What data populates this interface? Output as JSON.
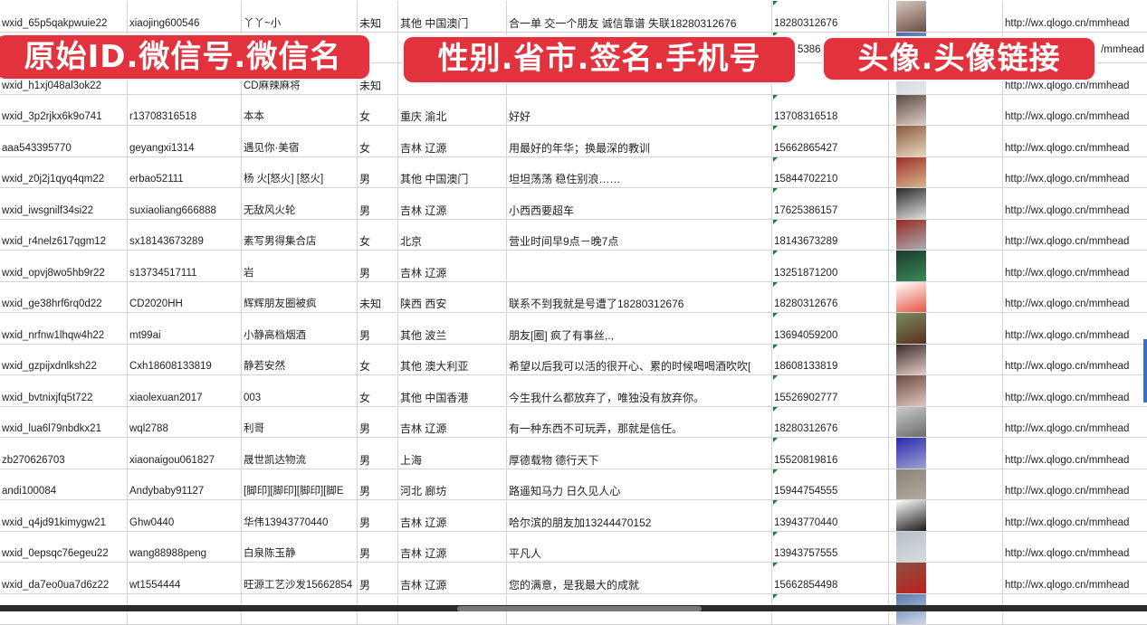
{
  "banners": [
    "原始ID.微信号.微信名",
    "性别.省市.签名.手机号",
    "头像.头像链接"
  ],
  "colors": {
    "banner": "#e2323e",
    "grid": "#d4d4d4",
    "cell_marker": "#1e7b34"
  },
  "rows": [
    {
      "id": "wxid_65p5qakpwuie22",
      "wechat": "xiaojing600546",
      "name": "丫丫~小",
      "gender": "未知",
      "region": "其他 中国澳门",
      "signature": "合一单 交一个朋友 诚信靠谱 失联18280312676",
      "phone": "18280312676",
      "avatar": [
        "#d8c8c0",
        "#6b4e44"
      ],
      "link": "http://wx.qlogo.cn/mmhead"
    },
    {
      "id": "",
      "wechat": "",
      "name": "",
      "gender": "",
      "region": "",
      "signature": "",
      "phone": "5386",
      "avatar": [
        "#4a6aa8",
        "#c0c8d8"
      ],
      "link": "/mmhead"
    },
    {
      "id": "wxid_h1xj048al3ok22",
      "wechat": "",
      "name": "CD麻辣麻将",
      "gender": "未知",
      "region": "",
      "signature": "",
      "phone": "",
      "avatar": [
        "#c8ccd8",
        "#e8e8ee"
      ],
      "link": "http://wx.qlogo.cn/mmhead"
    },
    {
      "id": "wxid_3p2rjkx6k9o741",
      "wechat": "r13708316518",
      "name": "本本",
      "gender": "女",
      "region": "重庆 渝北",
      "signature": "好好",
      "phone": "13708316518",
      "avatar": [
        "#5a4a44",
        "#e0d0c8"
      ],
      "link": "http://wx.qlogo.cn/mmhead"
    },
    {
      "id": "aaa543395770",
      "wechat": "geyangxi1314",
      "name": "遇见你·美宿",
      "gender": "女",
      "region": "吉林 辽源",
      "signature": "用最好的年华；换最深的教训",
      "phone": "15662865427",
      "avatar": [
        "#8a5a3a",
        "#e8d8c0"
      ],
      "link": "http://wx.qlogo.cn/mmhead"
    },
    {
      "id": "wxid_z0j2j1qyq4qm22",
      "wechat": "erbao52111",
      "name": "杨 火[怒火] [怒火]",
      "gender": "男",
      "region": "其他 中国澳门",
      "signature": "坦坦荡荡 稳住别浪……",
      "phone": "15844702210",
      "avatar": [
        "#a03028",
        "#d8b890"
      ],
      "link": "http://wx.qlogo.cn/mmhead"
    },
    {
      "id": "wxid_iwsgnilf34si22",
      "wechat": "suxiaoliang666888",
      "name": "无敌风火轮",
      "gender": "男",
      "region": "吉林 辽源",
      "signature": "小西西要超车",
      "phone": "17625386157",
      "avatar": [
        "#2a2a2a",
        "#e0e0e0"
      ],
      "link": "http://wx.qlogo.cn/mmhead"
    },
    {
      "id": "wxid_r4nelz617qgm12",
      "wechat": "sx18143673289",
      "name": "素写男得集合店",
      "gender": "女",
      "region": "北京",
      "signature": "营业时间早9点－晚7点",
      "phone": "18143673289",
      "avatar": [
        "#9a2a20",
        "#a8b0b8"
      ],
      "link": "http://wx.qlogo.cn/mmhead"
    },
    {
      "id": "wxid_opvj8wo5hb9r22",
      "wechat": "s13734517111",
      "name": "岩",
      "gender": "男",
      "region": "吉林 辽源",
      "signature": "",
      "phone": "13251871200",
      "avatar": [
        "#1a3a2a",
        "#3a8a5a"
      ],
      "link": "http://wx.qlogo.cn/mmhead"
    },
    {
      "id": "wxid_ge38hrf6rq0d22",
      "wechat": "CD2020HH",
      "name": "辉辉朋友圈被疯",
      "gender": "未知",
      "region": "陕西 西安",
      "signature": "联系不到我就是号遭了18280312676",
      "phone": "18280312676",
      "avatar": [
        "#ffffff",
        "#e85040"
      ],
      "link": "http://wx.qlogo.cn/mmhead"
    },
    {
      "id": "wxid_nrfnw1lhqw4h22",
      "wechat": "mt99ai",
      "name": "小静高档烟酒",
      "gender": "男",
      "region": "其他 波兰",
      "signature": "朋友[圈] 疯了有事丝,.,",
      "phone": "13694059200",
      "avatar": [
        "#7a8a60",
        "#5a3020"
      ],
      "link": "http://wx.qlogo.cn/mmhead"
    },
    {
      "id": "wxid_gzpijxdnlksh22",
      "wechat": "Cxh18608133819",
      "name": "静若安然",
      "gender": "女",
      "region": "其他 澳大利亚",
      "signature": "希望以后我可以活的很开心、累的时候喝喝酒吹吹[",
      "phone": "18608133819",
      "avatar": [
        "#3a2a2a",
        "#e8d0c8"
      ],
      "link": "http://wx.qlogo.cn/mmhead"
    },
    {
      "id": "wxid_bvtnixjfq5t722",
      "wechat": "xiaolexuan2017",
      "name": "003",
      "gender": "女",
      "region": "其他 中国香港",
      "signature": "今生我什么都放弃了，唯独没有放弃你。",
      "phone": "15526902777",
      "avatar": [
        "#6a4a40",
        "#e0c8c0"
      ],
      "link": "http://wx.qlogo.cn/mmhead"
    },
    {
      "id": "wxid_lua6l79nbdkx21",
      "wechat": "wql2788",
      "name": "利哥",
      "gender": "男",
      "region": "吉林 辽源",
      "signature": "有一种东西不可玩弄，那就是信任。",
      "phone": "18280312676",
      "avatar": [
        "#c8ccc8",
        "#6a6a6a"
      ],
      "link": "http://wx.qlogo.cn/mmhead"
    },
    {
      "id": "zb270626703",
      "wechat": "xiaonaigou061827",
      "name": "晟世凯达物流",
      "gender": "男",
      "region": "上海",
      "signature": "厚德载物 德行天下",
      "phone": "15520819816",
      "avatar": [
        "#2a2ab0",
        "#a0a0d0"
      ],
      "link": "http://wx.qlogo.cn/mmhead"
    },
    {
      "id": "andi100084",
      "wechat": "Andybaby91127",
      "name": "[脚印][脚印][脚印][脚E",
      "gender": "男",
      "region": "河北 廊坊",
      "signature": "路遥知马力 日久见人心",
      "phone": "15944754555",
      "avatar": [
        "#8a8478",
        "#b0aaa0"
      ],
      "link": "http://wx.qlogo.cn/mmhead"
    },
    {
      "id": "wxid_q4jd91kimygw21",
      "wechat": "Ghw0440",
      "name": "华伟13943770440",
      "gender": "男",
      "region": "吉林 辽源",
      "signature": "哈尔滨的朋友加13244470152",
      "phone": "13943770440",
      "avatar": [
        "#ffffff",
        "#1a1a1a"
      ],
      "link": "http://wx.qlogo.cn/mmhead"
    },
    {
      "id": "wxid_0epsqc76egeu22",
      "wechat": "wang88988peng",
      "name": "白泉陈玉静",
      "gender": "男",
      "region": "吉林 辽源",
      "signature": "平凡人",
      "phone": "13943757555",
      "avatar": [
        "#b8c0c8",
        "#d8dce0"
      ],
      "link": "http://wx.qlogo.cn/mmhead"
    },
    {
      "id": "wxid_da7eo0ua7d6z22",
      "wechat": "wt1554444",
      "name": "旺源工艺沙发15662854",
      "gender": "男",
      "region": "吉林 辽源",
      "signature": "您的满意，是我最大的成就",
      "phone": "15662854498",
      "avatar": [
        "#8a5040",
        "#c02020"
      ],
      "link": "http://wx.qlogo.cn/mmhead"
    },
    {
      "id": "",
      "wechat": "",
      "name": "",
      "gender": "",
      "region": "",
      "signature": "",
      "phone": "",
      "avatar": [
        "#5a7ab0",
        "#d0d8e8"
      ],
      "link": ""
    }
  ]
}
